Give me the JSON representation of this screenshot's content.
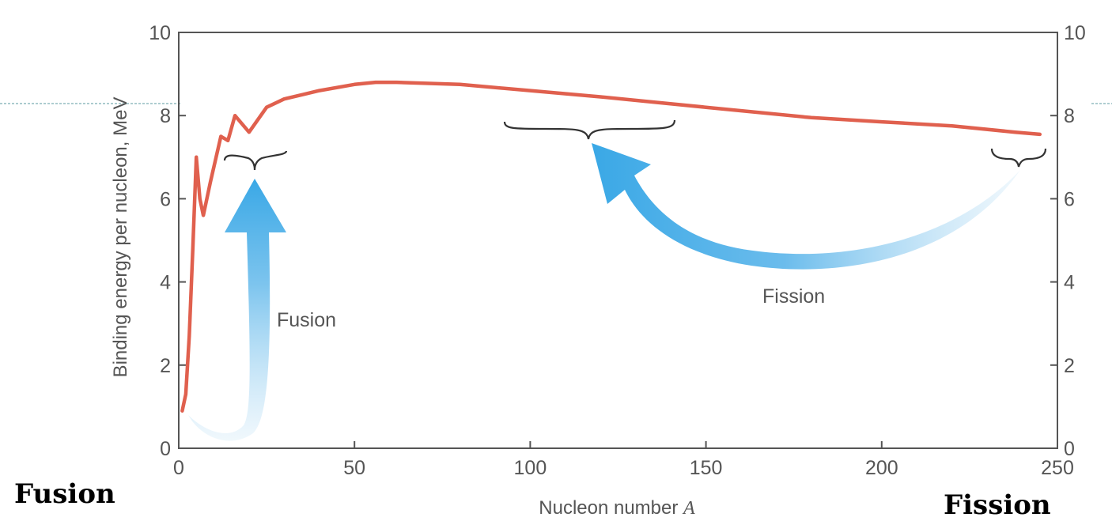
{
  "chart_data": {
    "type": "line",
    "title": "",
    "xlabel": "Nucleon number",
    "xlabel_var": "A",
    "ylabel": "Binding energy per nucleon, MeV",
    "xlim": [
      0,
      250
    ],
    "ylim": [
      0,
      10
    ],
    "x_ticks": [
      0,
      50,
      100,
      150,
      200,
      250
    ],
    "y_ticks": [
      0,
      2,
      4,
      6,
      8,
      10
    ],
    "grid": false,
    "colors": {
      "curve": "#e0604e",
      "arrow": "#3aa8e6",
      "axis": "#555555",
      "bracket": "#333333",
      "guide": "#5b9aa0"
    },
    "series": [
      {
        "x": [
          1,
          2,
          3,
          4,
          5,
          6,
          7,
          9,
          12,
          14,
          16,
          20,
          25,
          30,
          40,
          50,
          56,
          62,
          80,
          100,
          120,
          150,
          180,
          200,
          220,
          238,
          245
        ],
        "y": [
          0.9,
          1.3,
          2.7,
          4.8,
          7.0,
          6.0,
          5.6,
          6.4,
          7.5,
          7.4,
          8.0,
          7.6,
          8.2,
          8.4,
          8.6,
          8.75,
          8.8,
          8.8,
          8.75,
          8.6,
          8.45,
          8.2,
          7.95,
          7.85,
          7.75,
          7.6,
          7.55
        ]
      }
    ],
    "annotations": {
      "fusion": "Fusion",
      "fission": "Fission"
    }
  },
  "labels": {
    "fusion": "Fusion",
    "fission": "Fission"
  }
}
